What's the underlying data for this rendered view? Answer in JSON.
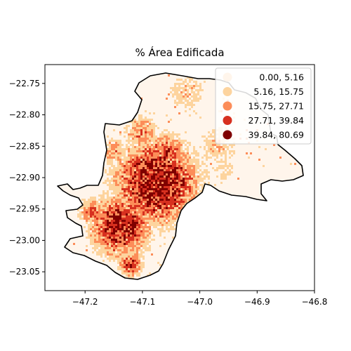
{
  "title": "% Área Edificada",
  "chart_data": {
    "type": "choropleth",
    "title": "% Área Edificada",
    "xlim": [
      -47.27,
      -46.8
    ],
    "ylim": [
      -23.08,
      -22.72
    ],
    "x_ticks": [
      -47.2,
      -47.1,
      -47.0,
      -46.9,
      -46.8
    ],
    "y_ticks": [
      -22.75,
      -22.8,
      -22.85,
      -22.9,
      -22.95,
      -23.0,
      -23.05
    ],
    "x_tick_labels": [
      "−47.2",
      "−47.1",
      "−47.0",
      "−46.9",
      "−46.8"
    ],
    "y_tick_labels": [
      "−22.75",
      "−22.80",
      "−22.85",
      "−22.90",
      "−22.95",
      "−23.00",
      "−23.05"
    ],
    "legend_position": "top-right",
    "classes": [
      {
        "label": "0.00,  5.16",
        "color": "#fff5eb"
      },
      {
        "label": "5.16, 15.75",
        "color": "#fdd49e"
      },
      {
        "label": "15.75, 27.71",
        "color": "#fc8d59"
      },
      {
        "label": "27.71, 39.84",
        "color": "#d7301f"
      },
      {
        "label": "39.84, 80.69",
        "color": "#7f0000"
      }
    ]
  }
}
